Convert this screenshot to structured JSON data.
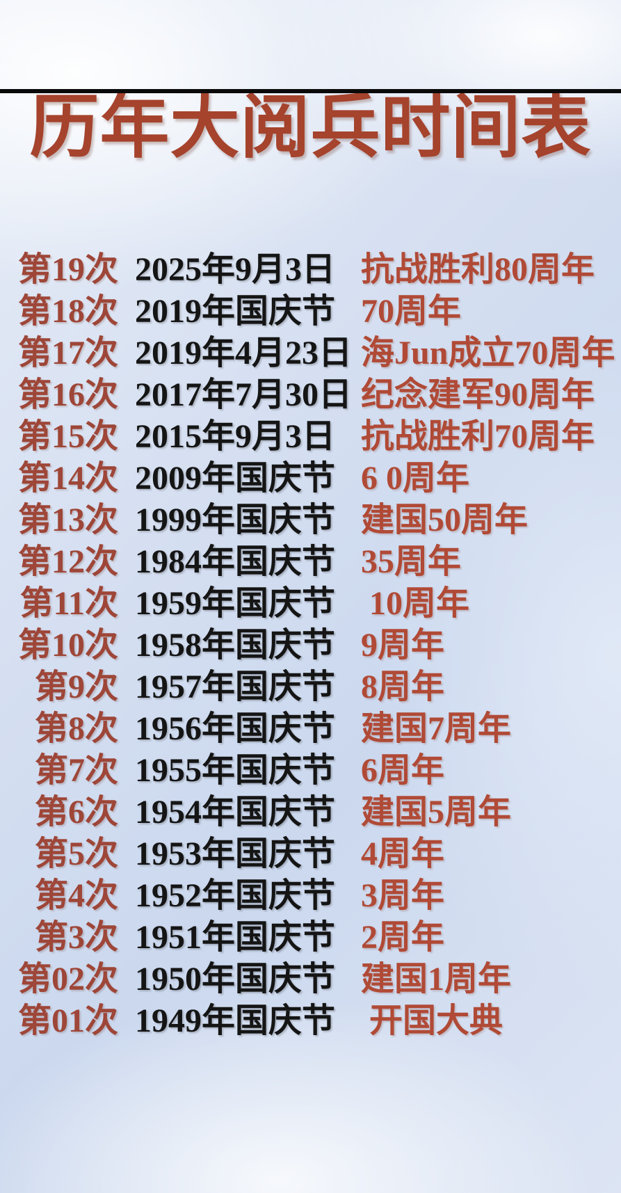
{
  "title": "历年大阅兵时间表",
  "colors": {
    "title_color": "#a5432d",
    "no_color": "#9e4638",
    "date_color": "#151515",
    "occasion_color": "#b04a36",
    "top_strip_color": "#0a0a0a",
    "background_blue": "#cbd8ee"
  },
  "table": {
    "rows": [
      {
        "no": "第19次",
        "date": "2025年9月3日",
        "occasion": "抗战胜利80周年"
      },
      {
        "no": "第18次",
        "date": "2019年国庆节",
        "occasion": "70周年"
      },
      {
        "no": "第17次",
        "date": "2019年4月23日",
        "occasion": "海Jun成立70周年"
      },
      {
        "no": "第16次",
        "date": "2017年7月30日",
        "occasion": "纪念建军90周年"
      },
      {
        "no": "第15次",
        "date": "2015年9月3日",
        "occasion": "抗战胜利70周年"
      },
      {
        "no": "第14次",
        "date": "2009年国庆节",
        "occasion": "6 0周年"
      },
      {
        "no": "第13次",
        "date": "1999年国庆节",
        "occasion": "建国50周年"
      },
      {
        "no": "第12次",
        "date": "1984年国庆节",
        "occasion": "35周年"
      },
      {
        "no": "第11次",
        "date": "1959年国庆节",
        "occasion": " 10周年"
      },
      {
        "no": "第10次",
        "date": "1958年国庆节",
        "occasion": "9周年"
      },
      {
        "no": "第9次",
        "date": "1957年国庆节",
        "occasion": "8周年"
      },
      {
        "no": "第8次",
        "date": "1956年国庆节",
        "occasion": "建国7周年"
      },
      {
        "no": "第7次",
        "date": "1955年国庆节",
        "occasion": "6周年"
      },
      {
        "no": "第6次",
        "date": "1954年国庆节",
        "occasion": "建国5周年"
      },
      {
        "no": "第5次",
        "date": "1953年国庆节",
        "occasion": "4周年"
      },
      {
        "no": "第4次",
        "date": "1952年国庆节",
        "occasion": "3周年"
      },
      {
        "no": "第3次",
        "date": "1951年国庆节",
        "occasion": "2周年"
      },
      {
        "no": "第02次",
        "date": "1950年国庆节",
        "occasion": "建国1周年"
      },
      {
        "no": "第01次",
        "date": "1949年国庆节",
        "occasion": " 开国大典"
      }
    ]
  }
}
